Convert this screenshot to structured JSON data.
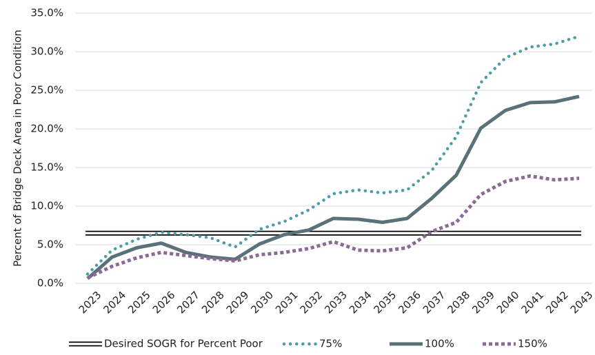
{
  "chart_data": {
    "type": "line",
    "y_label": "Percent of Bridge Deck Area in Poor Condition",
    "categories": [
      "2023",
      "2024",
      "2025",
      "2026",
      "2027",
      "2028",
      "2029",
      "2030",
      "2031",
      "2032",
      "2033",
      "2034",
      "2035",
      "2036",
      "2037",
      "2038",
      "2039",
      "2040",
      "2041",
      "2042",
      "2043"
    ],
    "series": [
      {
        "name": "Desired SOGR for Percent Poor",
        "color": "#000000",
        "style": "double",
        "values": [
          6.5,
          6.5,
          6.5,
          6.5,
          6.5,
          6.5,
          6.5,
          6.5,
          6.5,
          6.5,
          6.5,
          6.5,
          6.5,
          6.5,
          6.5,
          6.5,
          6.5,
          6.5,
          6.5,
          6.5,
          6.5
        ]
      },
      {
        "name": "75%",
        "color": "#4a9ea5",
        "style": "dotted",
        "values": [
          1.2,
          4.3,
          5.7,
          6.6,
          6.3,
          5.9,
          4.7,
          7.0,
          8.0,
          9.5,
          11.6,
          12.1,
          11.7,
          12.1,
          14.6,
          19.0,
          26.0,
          29.2,
          30.6,
          31.0,
          32.0
        ]
      },
      {
        "name": "100%",
        "color": "#5a717a",
        "style": "solid",
        "values": [
          0.6,
          3.4,
          4.6,
          5.2,
          4.0,
          3.4,
          3.1,
          5.1,
          6.3,
          6.9,
          8.4,
          8.3,
          7.9,
          8.4,
          11.0,
          14.0,
          20.1,
          22.4,
          23.4,
          23.5,
          24.2
        ]
      },
      {
        "name": "150%",
        "color": "#8b6a96",
        "style": "dashed",
        "values": [
          0.7,
          2.2,
          3.3,
          4.0,
          3.6,
          3.2,
          2.9,
          3.7,
          4.0,
          4.5,
          5.4,
          4.3,
          4.2,
          4.6,
          6.7,
          7.9,
          11.5,
          13.2,
          13.9,
          13.4,
          13.6
        ]
      }
    ],
    "ylim": [
      0,
      35
    ],
    "yticks": [
      {
        "value": 0,
        "label": "0.0%"
      },
      {
        "value": 5,
        "label": "5.0%"
      },
      {
        "value": 10,
        "label": "10.0%"
      },
      {
        "value": 15,
        "label": "15.0%"
      },
      {
        "value": 20,
        "label": "20.0%"
      },
      {
        "value": 25,
        "label": "25.0%"
      },
      {
        "value": 30,
        "label": "30.0%"
      },
      {
        "value": 35,
        "label": "35.0%"
      }
    ],
    "grid": true,
    "legend": "bottom"
  }
}
